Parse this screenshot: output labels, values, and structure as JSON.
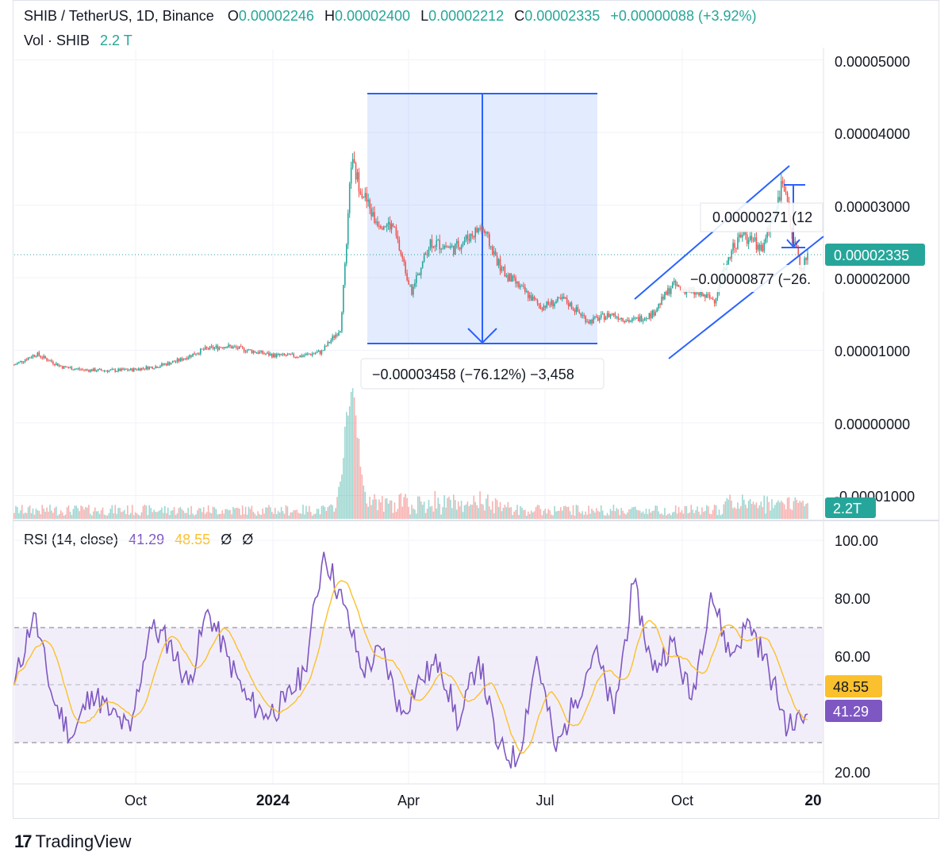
{
  "header": {
    "symbol": "SHIB / TetherUS, 1D, Binance",
    "o_label": "O",
    "o_value": "0.00002246",
    "h_label": "H",
    "h_value": "0.00002400",
    "l_label": "L",
    "l_value": "0.00002212",
    "c_label": "C",
    "c_value": "0.00002335",
    "change": "+0.00000088 (+3.92%)",
    "vol_label": "Vol · SHIB",
    "vol_value": "2.2 T"
  },
  "rsi_header": {
    "label": "RSI (14, close)",
    "rsi_value": "41.29",
    "ma_value": "48.55",
    "extra1": "Ø",
    "extra2": "Ø"
  },
  "colors": {
    "up": "#26a69a",
    "down": "#ef5350",
    "drawing": "#2962ff",
    "rsi_line": "#7e57c2",
    "rsi_ma": "#fbc02d",
    "rsi_band": "#ede7f6",
    "price_tag": "#26a69a"
  },
  "price_axis": {
    "ticks": [
      "0.00005000",
      "0.00004000",
      "0.00003000",
      "0.00002000",
      "0.00001000",
      "0.00000000",
      "-0.00001000"
    ],
    "current_price_tag": "0.00002335",
    "volume_tag": "2.2T"
  },
  "rsi_axis": {
    "ticks": [
      "100.00",
      "80.00",
      "60.00",
      "20.00"
    ],
    "ma_tag": "48.55",
    "rsi_tag": "41.29"
  },
  "time_axis": {
    "ticks": [
      "Oct",
      "2024",
      "Apr",
      "Jul",
      "Oct",
      "20"
    ]
  },
  "annotations": {
    "measure_main": "−0.00003458 (−76.12%) −3,458",
    "measure_small_1": "0.00000271 (12",
    "measure_small_2": "−0.00000877 (−26."
  },
  "branding": {
    "name": "TradingView"
  },
  "chart_data": {
    "type": "candlestick",
    "symbol": "SHIB/USDT",
    "interval": "1D",
    "ohlc_last": {
      "open": 2.246e-05,
      "high": 2.4e-05,
      "low": 2.212e-05,
      "close": 2.335e-05,
      "change": 8.8e-07,
      "change_pct": 3.92
    },
    "close_path": {
      "dates": [
        "2023-08-01",
        "2023-08-15",
        "2023-09-01",
        "2023-09-15",
        "2023-10-01",
        "2023-10-15",
        "2023-11-01",
        "2023-11-15",
        "2023-12-01",
        "2023-12-15",
        "2024-01-01",
        "2024-01-15",
        "2024-02-01",
        "2024-02-15",
        "2024-02-27",
        "2024-03-02",
        "2024-03-05",
        "2024-03-10",
        "2024-03-20",
        "2024-04-01",
        "2024-04-13",
        "2024-04-25",
        "2024-05-10",
        "2024-05-28",
        "2024-06-10",
        "2024-06-25",
        "2024-07-05",
        "2024-07-20",
        "2024-08-05",
        "2024-08-20",
        "2024-09-01",
        "2024-09-15",
        "2024-09-28",
        "2024-10-10",
        "2024-10-25",
        "2024-11-05",
        "2024-11-12",
        "2024-11-25",
        "2024-12-08",
        "2024-12-15",
        "2024-12-20",
        "2024-12-24"
      ],
      "close": [
        8e-06,
        9.5e-06,
        7.7e-06,
        7.3e-06,
        7.2e-06,
        7.3e-06,
        7.8e-06,
        8.6e-06,
        1.01e-05,
        1.06e-05,
        9.9e-06,
        9.3e-06,
        9.2e-06,
        9.8e-06,
        1.3e-05,
        2.4e-05,
        3.6e-05,
        3.3e-05,
        2.8e-05,
        2.7e-05,
        1.8e-05,
        2.5e-05,
        2.4e-05,
        2.7e-05,
        2.1e-05,
        1.8e-05,
        1.6e-05,
        1.7e-05,
        1.4e-05,
        1.5e-05,
        1.4e-05,
        1.5e-05,
        1.9e-05,
        1.8e-05,
        1.7e-05,
        2.4e-05,
        2.6e-05,
        2.4e-05,
        3.3e-05,
        2.5e-05,
        2.1e-05,
        2.335e-05
      ]
    },
    "volume_last": "2.2T",
    "rsi": {
      "period": 14,
      "value": 41.29,
      "ma": 48.55,
      "bands": [
        30,
        70
      ],
      "path": [
        50,
        75,
        45,
        32,
        48,
        40,
        34,
        70,
        65,
        50,
        76,
        60,
        45,
        40,
        44,
        55,
        96,
        78,
        55,
        62,
        40,
        52,
        58,
        36,
        60,
        28,
        24,
        60,
        27,
        45,
        62,
        40,
        85,
        55,
        65,
        45,
        82,
        60,
        72,
        55,
        35,
        40
      ]
    },
    "measure": {
      "from": 4.54e-05,
      "to": 1.08e-05,
      "delta": -3.458e-05,
      "delta_pct": -76.12,
      "ticks": -3458
    },
    "y_axis_ticks": [
      5e-05,
      4e-05,
      3e-05,
      2e-05,
      1e-05,
      0,
      -1e-05
    ],
    "rsi_axis_ticks": [
      100,
      80,
      60,
      20
    ],
    "x_axis_ticks": [
      "Oct",
      "2024",
      "Apr",
      "Jul",
      "Oct",
      "20"
    ]
  }
}
